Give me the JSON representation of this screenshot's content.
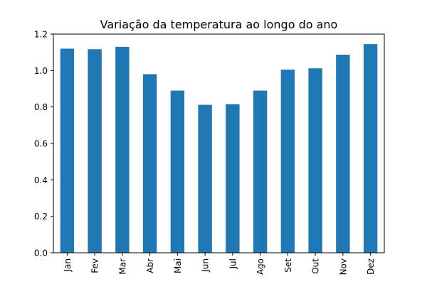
{
  "chart_data": {
    "type": "bar",
    "title": "Variação da temperatura ao longo do ano",
    "xlabel": "",
    "ylabel": "",
    "categories": [
      "Jan",
      "Fev",
      "Mar",
      "Abr",
      "Mai",
      "Jun",
      "Jul",
      "Ago",
      "Set",
      "Out",
      "Nov",
      "Dez"
    ],
    "values": [
      1.12,
      1.117,
      1.13,
      0.98,
      0.89,
      0.812,
      0.815,
      0.89,
      1.005,
      1.012,
      1.087,
      1.145
    ],
    "ylim": [
      0,
      1.2
    ],
    "yticks": [
      "0.0",
      "0.2",
      "0.4",
      "0.6",
      "0.8",
      "1.0",
      "1.2"
    ],
    "grid": false,
    "legend": "none",
    "bar_color": "#1f77b4",
    "xtick_rotation": "vertical"
  }
}
